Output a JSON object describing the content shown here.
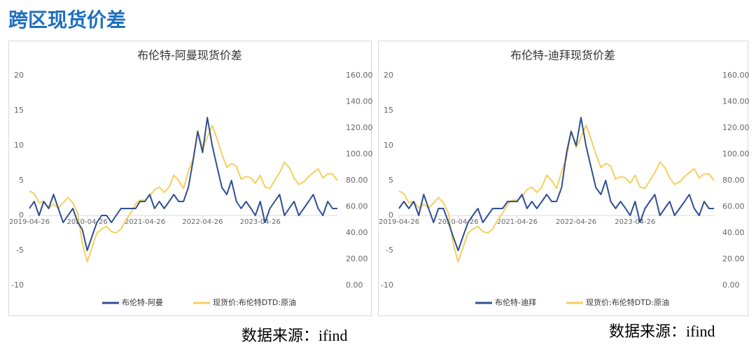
{
  "header": {
    "title": "跨区现货价差"
  },
  "chart_data": [
    {
      "type": "line",
      "title": "布伦特-阿曼现货价差",
      "x": [
        "2019-04-26",
        "2019-05-26",
        "2019-06-26",
        "2019-07-26",
        "2019-08-26",
        "2019-09-26",
        "2019-10-26",
        "2019-11-26",
        "2019-12-26",
        "2020-01-26",
        "2020-02-26",
        "2020-03-26",
        "2020-04-26",
        "2020-05-26",
        "2020-06-26",
        "2020-07-26",
        "2020-08-26",
        "2020-09-26",
        "2020-10-26",
        "2020-11-26",
        "2020-12-26",
        "2021-01-26",
        "2021-02-26",
        "2021-03-26",
        "2021-04-26",
        "2021-05-26",
        "2021-06-26",
        "2021-07-26",
        "2021-08-26",
        "2021-09-26",
        "2021-10-26",
        "2021-11-26",
        "2021-12-26",
        "2022-01-26",
        "2022-02-26",
        "2022-03-26",
        "2022-04-26",
        "2022-05-26",
        "2022-06-26",
        "2022-07-26",
        "2022-08-26",
        "2022-09-26",
        "2022-10-26",
        "2022-11-26",
        "2022-12-26",
        "2023-01-26",
        "2023-02-26",
        "2023-03-26",
        "2023-04-26",
        "2023-05-26",
        "2023-06-26",
        "2023-07-26",
        "2023-08-26",
        "2023-09-26",
        "2023-10-26",
        "2023-11-26",
        "2023-12-26",
        "2024-01-26",
        "2024-02-26",
        "2024-03-26",
        "2024-04-26",
        "2024-05-26",
        "2024-06-26",
        "2024-07-26",
        "2024-08-26"
      ],
      "xlim": [
        "2019-04-26",
        "2024-08-26"
      ],
      "xticks": [
        "2019-04-26",
        "2020-04-26",
        "2021-04-26",
        "2022-04-26",
        "2023-04-26"
      ],
      "ylim": [
        -10,
        20
      ],
      "yticks": [
        -10,
        -5,
        0,
        5,
        10,
        15,
        20
      ],
      "y2lim": [
        0,
        160
      ],
      "y2ticks": [
        {
          "value": 0,
          "label": "0.00"
        },
        {
          "value": 20,
          "label": "20.00"
        },
        {
          "value": 40,
          "label": "40.00"
        },
        {
          "value": 60,
          "label": "60.00"
        },
        {
          "value": 80,
          "label": "80.00"
        },
        {
          "value": 100,
          "label": "100.00"
        },
        {
          "value": 120,
          "label": "120.00"
        },
        {
          "value": 140,
          "label": "140.00"
        },
        {
          "value": 160,
          "label": "160.00"
        }
      ],
      "series": [
        {
          "name": "布伦特-阿曼",
          "color": "#2f4f93",
          "values": [
            1,
            2,
            0,
            2,
            1,
            3,
            1,
            -1,
            0,
            1,
            -1,
            -2,
            -5,
            -3,
            -1,
            0,
            0,
            -1,
            0,
            1,
            1,
            1,
            1,
            2,
            2,
            3,
            1,
            2,
            1,
            2,
            3,
            2,
            2,
            4,
            8,
            12,
            9,
            14,
            10,
            7,
            4,
            3,
            5,
            2,
            1,
            2,
            1,
            0,
            2,
            -1,
            1,
            2,
            3,
            0,
            1,
            2,
            0,
            1,
            2,
            3,
            1,
            0,
            2,
            1,
            1
          ]
        },
        {
          "name": "现货价:布伦特DTD:原油",
          "color": "#f5cf5f",
          "axis": "y2",
          "values": [
            72,
            70,
            63,
            64,
            59,
            62,
            59,
            63,
            67,
            63,
            55,
            32,
            18,
            29,
            40,
            43,
            45,
            41,
            40,
            43,
            50,
            55,
            62,
            65,
            65,
            68,
            73,
            75,
            71,
            75,
            84,
            80,
            74,
            87,
            97,
            118,
            105,
            113,
            122,
            112,
            100,
            90,
            93,
            91,
            81,
            83,
            82,
            78,
            84,
            75,
            74,
            80,
            86,
            94,
            90,
            82,
            77,
            79,
            83,
            86,
            89,
            82,
            85,
            85,
            80
          ]
        }
      ]
    },
    {
      "type": "line",
      "title": "布伦特-迪拜现货价差",
      "x": [
        "2019-04-26",
        "2019-05-26",
        "2019-06-26",
        "2019-07-26",
        "2019-08-26",
        "2019-09-26",
        "2019-10-26",
        "2019-11-26",
        "2019-12-26",
        "2020-01-26",
        "2020-02-26",
        "2020-03-26",
        "2020-04-26",
        "2020-05-26",
        "2020-06-26",
        "2020-07-26",
        "2020-08-26",
        "2020-09-26",
        "2020-10-26",
        "2020-11-26",
        "2020-12-26",
        "2021-01-26",
        "2021-02-26",
        "2021-03-26",
        "2021-04-26",
        "2021-05-26",
        "2021-06-26",
        "2021-07-26",
        "2021-08-26",
        "2021-09-26",
        "2021-10-26",
        "2021-11-26",
        "2021-12-26",
        "2022-01-26",
        "2022-02-26",
        "2022-03-26",
        "2022-04-26",
        "2022-05-26",
        "2022-06-26",
        "2022-07-26",
        "2022-08-26",
        "2022-09-26",
        "2022-10-26",
        "2022-11-26",
        "2022-12-26",
        "2023-01-26",
        "2023-02-26",
        "2023-03-26",
        "2023-04-26",
        "2023-05-26",
        "2023-06-26",
        "2023-07-26",
        "2023-08-26",
        "2023-09-26",
        "2023-10-26",
        "2023-11-26",
        "2023-12-26",
        "2024-01-26",
        "2024-02-26",
        "2024-03-26",
        "2024-04-26",
        "2024-05-26",
        "2024-06-26",
        "2024-07-26",
        "2024-08-26"
      ],
      "xlim": [
        "2019-04-26",
        "2024-08-26"
      ],
      "xticks": [
        "2019-04-26",
        "2020-04-26",
        "2021-04-26",
        "2022-04-26",
        "2023-04-26"
      ],
      "ylim": [
        -10,
        20
      ],
      "yticks": [
        -10,
        -5,
        0,
        5,
        10,
        15,
        20
      ],
      "y2lim": [
        0,
        160
      ],
      "y2ticks": [
        {
          "value": 0,
          "label": "0.00"
        },
        {
          "value": 20,
          "label": "20.00"
        },
        {
          "value": 40,
          "label": "40.00"
        },
        {
          "value": 60,
          "label": "60.00"
        },
        {
          "value": 80,
          "label": "80.00"
        },
        {
          "value": 100,
          "label": "100.00"
        },
        {
          "value": 120,
          "label": "120.00"
        },
        {
          "value": 140,
          "label": "140.00"
        },
        {
          "value": 160,
          "label": "160.00"
        }
      ],
      "series": [
        {
          "name": "布伦特-迪拜",
          "color": "#2f4f93",
          "values": [
            1,
            2,
            1,
            2,
            0,
            3,
            1,
            -1,
            1,
            1,
            -1,
            -3,
            -5,
            -3,
            -1,
            0,
            1,
            -1,
            0,
            1,
            1,
            1,
            2,
            2,
            2,
            3,
            1,
            2,
            1,
            2,
            3,
            2,
            2,
            4,
            9,
            12,
            10,
            14,
            10,
            7,
            4,
            3,
            5,
            2,
            1,
            2,
            1,
            0,
            2,
            -1,
            1,
            2,
            3,
            0,
            1,
            2,
            0,
            1,
            2,
            3,
            1,
            0,
            2,
            1,
            1
          ]
        },
        {
          "name": "现货价:布伦特DTD:原油",
          "color": "#f5cf5f",
          "axis": "y2",
          "values": [
            72,
            70,
            63,
            64,
            59,
            62,
            59,
            63,
            67,
            63,
            55,
            32,
            18,
            29,
            40,
            43,
            45,
            41,
            40,
            43,
            50,
            55,
            62,
            65,
            65,
            68,
            73,
            75,
            71,
            75,
            84,
            80,
            74,
            87,
            97,
            118,
            105,
            113,
            122,
            112,
            100,
            90,
            93,
            91,
            81,
            83,
            82,
            78,
            84,
            75,
            74,
            80,
            86,
            94,
            90,
            82,
            77,
            79,
            83,
            86,
            89,
            82,
            85,
            85,
            80
          ]
        }
      ]
    }
  ],
  "sources": [
    "数据来源：ifind",
    "数据来源：ifind"
  ]
}
